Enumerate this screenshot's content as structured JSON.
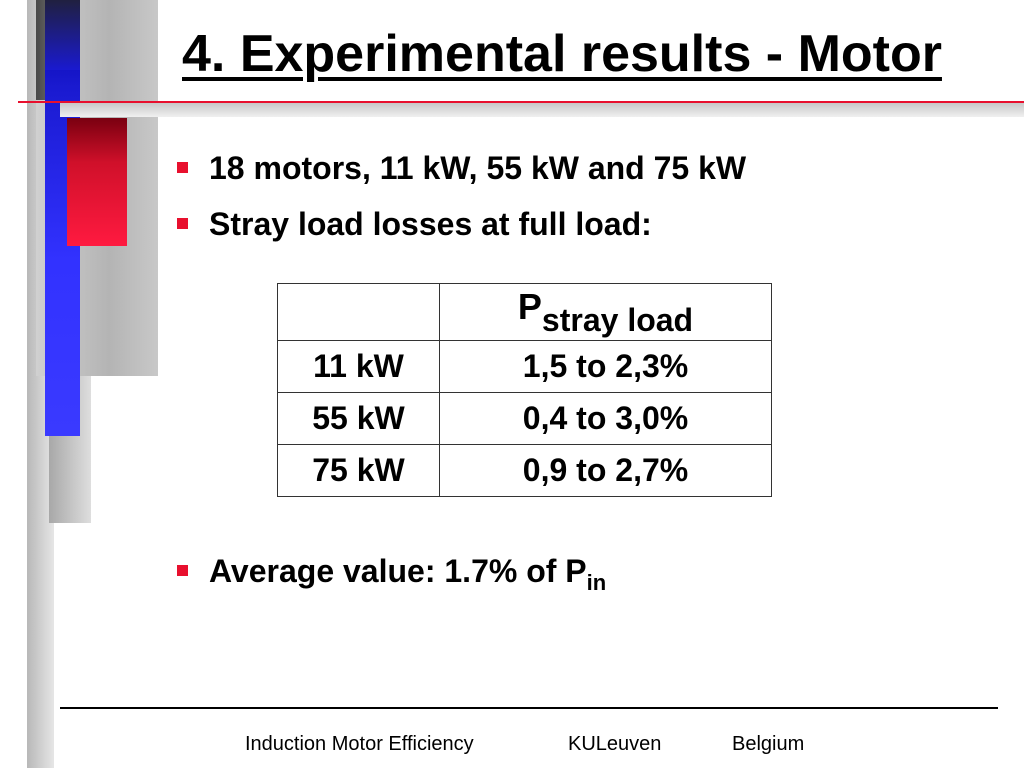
{
  "slide": {
    "title": "4. Experimental results - Motor",
    "bullets": [
      "18 motors, 11 kW, 55 kW and 75 kW",
      "Stray load losses at full load:"
    ],
    "table": {
      "header": {
        "empty": "",
        "symbol": "P",
        "subscript": "stray load"
      },
      "rows": [
        {
          "power": "11 kW",
          "range": "1,5 to 2,3%"
        },
        {
          "power": "55 kW",
          "range": "0,4 to 3,0%"
        },
        {
          "power": "75 kW",
          "range": "0,9 to 2,7%"
        }
      ]
    },
    "average": {
      "text": "Average value: 1.7% of P",
      "subscript": "in"
    },
    "footer": {
      "left": "Induction Motor Efficiency",
      "center": "KULeuven",
      "right": "Belgium"
    }
  },
  "colors": {
    "accent_red": "#e8102e",
    "accent_blue": "#3232ff",
    "deco_gray": "#c8c8c8"
  }
}
